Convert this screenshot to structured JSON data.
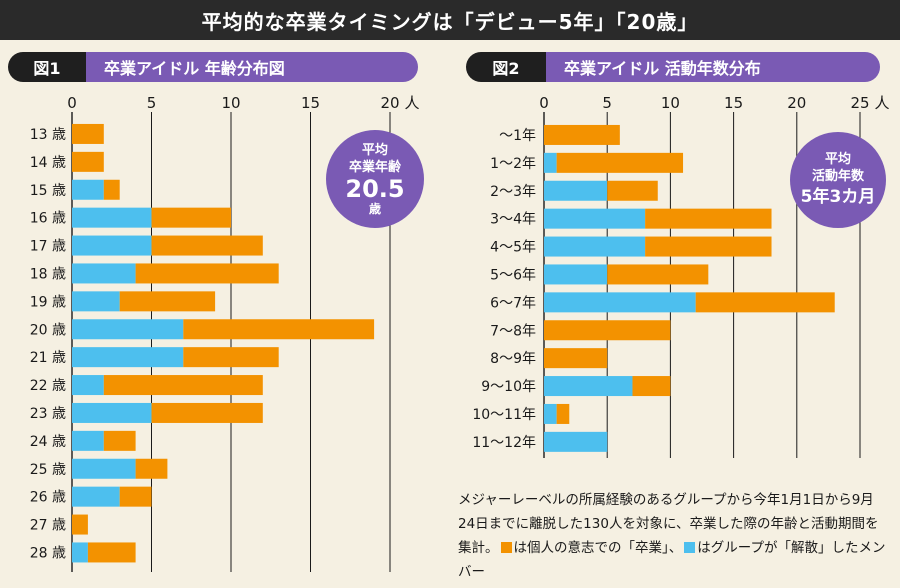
{
  "header": {
    "title": "平均的な卒業タイミングは「デビュー5年」「20歳」"
  },
  "chart1_title": {
    "tag": "図1",
    "name": "卒業アイドル 年齢分布図"
  },
  "chart2_title": {
    "tag": "図2",
    "name": "卒業アイドル 活動年数分布"
  },
  "badge1": {
    "line1": "平均",
    "line2": "卒業年齢",
    "value": "20.5",
    "unit": "歳"
  },
  "badge2": {
    "line1": "平均",
    "line2": "活動年数",
    "value": "5年3カ月"
  },
  "note": {
    "text1": "メジャーレーベルの所属経験のあるグループから今年1月1日から9月24日までに離脱した130人を対象に、卒業した際の年齢と活動期間を集計。",
    "text2": "は個人の意志での「卒業」、",
    "text3": "はグループが「解散」したメンバー"
  },
  "colors": {
    "graduation": "#f39200",
    "disbanded": "#4dbfee",
    "accent": "#7a5ab4"
  },
  "chart_data": [
    {
      "type": "bar",
      "orientation": "horizontal",
      "stacked": true,
      "title": "卒業アイドル 年齢分布図",
      "unit": "人",
      "xlim": [
        0,
        20
      ],
      "ticks": [
        0,
        5,
        10,
        15,
        20
      ],
      "categories": [
        "13 歳",
        "14 歳",
        "15 歳",
        "16 歳",
        "17 歳",
        "18 歳",
        "19 歳",
        "20 歳",
        "21 歳",
        "22 歳",
        "23 歳",
        "24 歳",
        "25 歳",
        "26 歳",
        "27 歳",
        "28 歳"
      ],
      "series": [
        {
          "name": "解散",
          "color": "#4dbfee",
          "values": [
            0,
            0,
            2,
            5,
            5,
            4,
            3,
            7,
            7,
            2,
            5,
            2,
            4,
            3,
            0,
            1
          ]
        },
        {
          "name": "卒業",
          "color": "#f39200",
          "values": [
            2,
            2,
            1,
            5,
            7,
            9,
            6,
            12,
            6,
            10,
            7,
            2,
            2,
            2,
            1,
            3
          ]
        }
      ]
    },
    {
      "type": "bar",
      "orientation": "horizontal",
      "stacked": true,
      "title": "卒業アイドル 活動年数分布",
      "unit": "人",
      "xlim": [
        0,
        25
      ],
      "ticks": [
        0,
        5,
        10,
        15,
        20,
        25
      ],
      "categories": [
        "～1年",
        "1～2年",
        "2～3年",
        "3～4年",
        "4～5年",
        "5～6年",
        "6～7年",
        "7～8年",
        "8～9年",
        "9～10年",
        "10～11年",
        "11～12年"
      ],
      "series": [
        {
          "name": "解散",
          "color": "#4dbfee",
          "values": [
            0,
            1,
            5,
            8,
            8,
            5,
            12,
            0,
            0,
            7,
            1,
            5
          ]
        },
        {
          "name": "卒業",
          "color": "#f39200",
          "values": [
            6,
            10,
            4,
            10,
            10,
            8,
            11,
            10,
            5,
            3,
            1,
            0
          ]
        }
      ]
    }
  ]
}
